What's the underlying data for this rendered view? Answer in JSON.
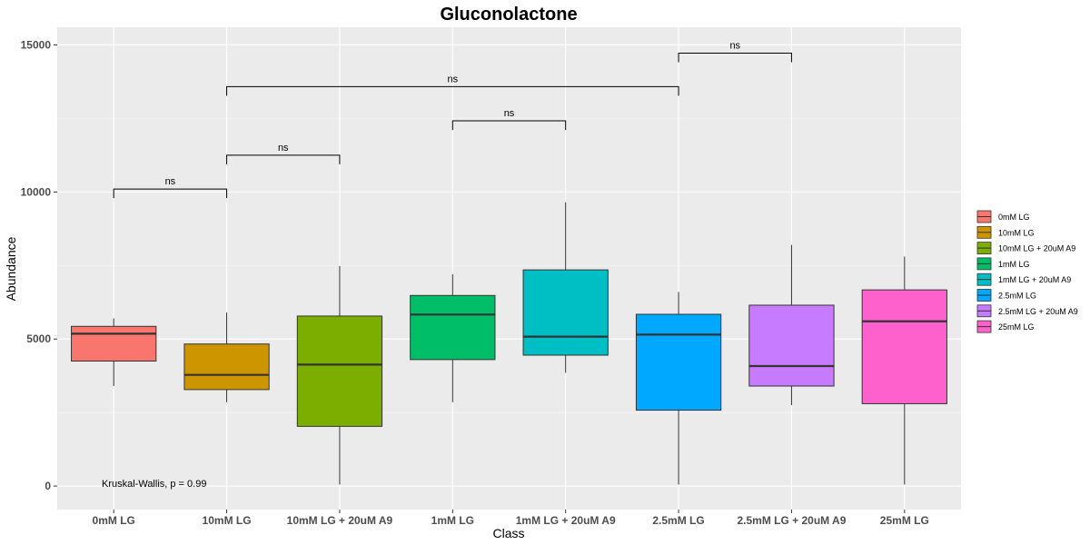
{
  "chart_data": {
    "type": "boxplot",
    "title": "Gluconolactone",
    "xlabel": "Class",
    "ylabel": "Abundance",
    "ylim": [
      -800,
      15600
    ],
    "yticks": [
      0,
      5000,
      10000,
      15000
    ],
    "ytick_labels": [
      "0",
      "5000",
      "10000",
      "15000"
    ],
    "categories": [
      "0mM LG",
      "10mM LG",
      "10mM LG + 20uM A9",
      "1mM LG",
      "1mM LG + 20uM A9",
      "2.5mM LG",
      "2.5mM LG + 20uM A9",
      "25mM LG"
    ],
    "colors": [
      "#F8766D",
      "#CD9600",
      "#7CAE00",
      "#00BE67",
      "#00BFC4",
      "#00A9FF",
      "#C77CFF",
      "#FF61CC"
    ],
    "boxes": [
      {
        "min": 3400,
        "q1": 4250,
        "median": 5180,
        "q3": 5430,
        "max": 5700
      },
      {
        "min": 2850,
        "q1": 3280,
        "median": 3780,
        "q3": 4830,
        "max": 5900
      },
      {
        "min": 50,
        "q1": 2030,
        "median": 4130,
        "q3": 5780,
        "max": 7480
      },
      {
        "min": 2850,
        "q1": 4300,
        "median": 5830,
        "q3": 6480,
        "max": 7200
      },
      {
        "min": 3850,
        "q1": 4450,
        "median": 5080,
        "q3": 7350,
        "max": 9650
      },
      {
        "min": 50,
        "q1": 2580,
        "median": 5150,
        "q3": 5840,
        "max": 6600
      },
      {
        "min": 2750,
        "q1": 3400,
        "median": 4080,
        "q3": 6150,
        "max": 8200
      },
      {
        "min": 50,
        "q1": 2800,
        "median": 5600,
        "q3": 6670,
        "max": 7800
      }
    ],
    "comparisons": [
      {
        "from": 0,
        "to": 1,
        "y": 10100,
        "label": "ns"
      },
      {
        "from": 1,
        "to": 2,
        "y": 11250,
        "label": "ns"
      },
      {
        "from": 3,
        "to": 4,
        "y": 12420,
        "label": "ns"
      },
      {
        "from": 1,
        "to": 5,
        "y": 13580,
        "label": "ns"
      },
      {
        "from": 5,
        "to": 6,
        "y": 14720,
        "label": "ns"
      }
    ],
    "annotation": "Kruskal-Wallis, p = 0.99",
    "legend": {
      "position": "right",
      "entries": [
        "0mM LG",
        "10mM LG",
        "10mM LG + 20uM A9",
        "1mM LG",
        "1mM LG + 20uM A9",
        "2.5mM LG",
        "2.5mM LG + 20uM A9",
        "25mM LG"
      ]
    },
    "grid": true
  }
}
